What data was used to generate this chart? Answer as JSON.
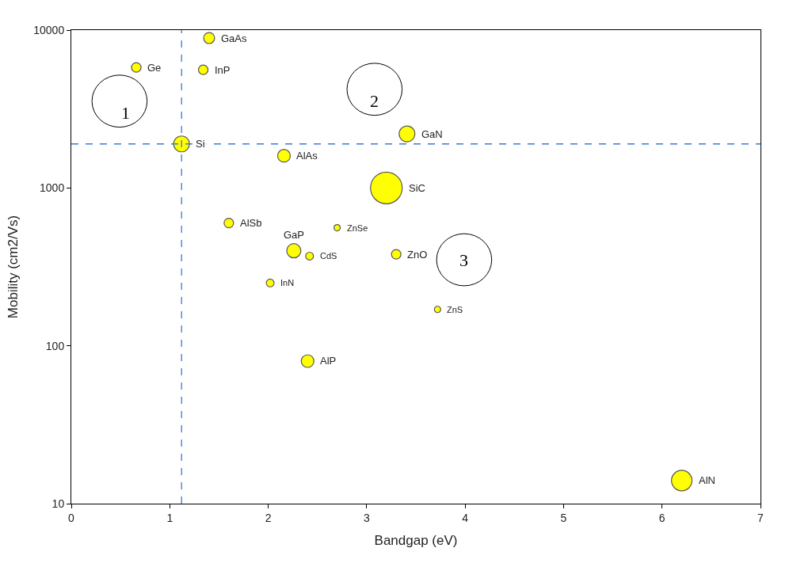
{
  "chart_data": {
    "type": "bubble",
    "xlabel": "Bandgap (eV)",
    "ylabel": "Mobility (cm2/Vs)",
    "x": [
      0.66,
      1.4,
      1.34,
      1.12,
      3.41,
      2.16,
      3.2,
      1.6,
      2.7,
      2.26,
      2.42,
      3.3,
      2.02,
      3.72,
      2.4,
      6.2
    ],
    "values": [
      5800,
      8900,
      5600,
      1900,
      2200,
      1600,
      1000,
      600,
      560,
      400,
      370,
      380,
      250,
      170,
      80,
      14
    ],
    "sizes": [
      0.09,
      0.12,
      0.09,
      0.25,
      0.25,
      0.16,
      1,
      0.09,
      0.04,
      0.2,
      0.06,
      0.09,
      0.06,
      0.04,
      0.16,
      0.42
    ],
    "color": "#ffff00",
    "log": "y",
    "xlim": [
      0,
      7
    ],
    "xticks": [
      0,
      1,
      2,
      3,
      4,
      5,
      6,
      7
    ],
    "ylim": [
      10,
      10000
    ],
    "yticks": [
      10,
      100,
      1000,
      10000
    ],
    "ref_lines": [
      {
        "axis": "x",
        "value": 1.12,
        "color": "#3a7bd5",
        "line_style": "dashed"
      },
      {
        "axis": "y",
        "value": 1900,
        "color": "#3a7bd5",
        "line_style": "dashed"
      }
    ],
    "annotations": [
      {
        "text": "Ge",
        "x": 0.66,
        "y": 5800
      },
      {
        "text": "GaAs",
        "x": 1.4,
        "y": 8900
      },
      {
        "text": "InP",
        "x": 1.34,
        "y": 5600
      },
      {
        "text": "Si",
        "x": 1.12,
        "y": 1900
      },
      {
        "text": "GaN",
        "x": 3.41,
        "y": 2200
      },
      {
        "text": "AlAs",
        "x": 2.16,
        "y": 1600
      },
      {
        "text": "SiC",
        "x": 3.2,
        "y": 1000
      },
      {
        "text": "AlSb",
        "x": 1.6,
        "y": 600
      },
      {
        "text": "ZnSe",
        "x": 2.7,
        "y": 560
      },
      {
        "text": "GaP",
        "x": 2.26,
        "y": 400
      },
      {
        "text": "CdS",
        "x": 2.42,
        "y": 370
      },
      {
        "text": "ZnO",
        "x": 3.3,
        "y": 380
      },
      {
        "text": "InN",
        "x": 2.02,
        "y": 250
      },
      {
        "text": "ZnS",
        "x": 3.72,
        "y": 170
      },
      {
        "text": "AlP",
        "x": 2.4,
        "y": 80
      },
      {
        "text": "AlN",
        "x": 6.2,
        "y": 14
      },
      "1",
      "2",
      "3"
    ]
  }
}
